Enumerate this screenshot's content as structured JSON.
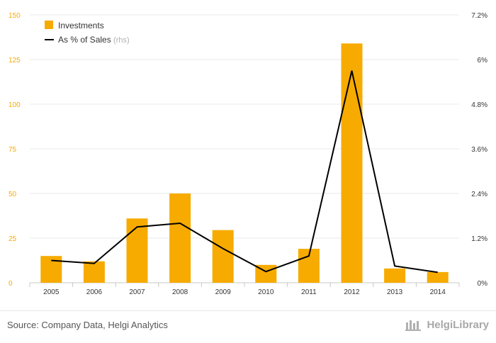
{
  "chart_data": {
    "type": "bar+line",
    "categories": [
      "2005",
      "2006",
      "2007",
      "2008",
      "2009",
      "2010",
      "2011",
      "2012",
      "2013",
      "2014"
    ],
    "series": [
      {
        "name": "Investments",
        "type": "bar",
        "axis": "left",
        "color": "#f7ab00",
        "values": [
          15,
          12,
          36,
          50,
          29.5,
          10,
          19,
          134,
          8,
          6
        ]
      },
      {
        "name": "As % of Sales",
        "name_suffix": "(rhs)",
        "type": "line",
        "axis": "right",
        "color": "#000000",
        "values": [
          0.6,
          0.52,
          1.5,
          1.6,
          0.92,
          0.3,
          0.72,
          5.7,
          0.45,
          0.28
        ]
      }
    ],
    "y_left": {
      "ylim": [
        0,
        150
      ],
      "ticks": [
        0,
        25,
        50,
        75,
        100,
        125,
        150
      ],
      "tick_color": "#f7ab00"
    },
    "y_right": {
      "ylim": [
        0,
        7.2
      ],
      "ticks": [
        "0%",
        "1.2%",
        "2.4%",
        "3.6%",
        "4.8%",
        "6%",
        "7.2%"
      ]
    },
    "grid": true,
    "legend_position": "top-left"
  },
  "footer": {
    "source": "Source: Company Data, Helgi Analytics",
    "logo_text": "HelgiLibrary",
    "logo_icon": "library-icon"
  }
}
